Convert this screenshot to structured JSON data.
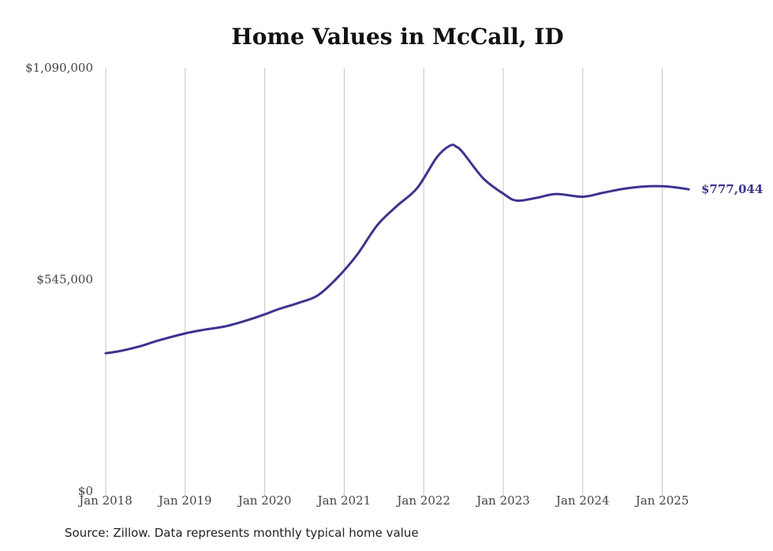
{
  "chart_data": {
    "type": "line",
    "title": "Home Values in McCall, ID",
    "xlabel": "",
    "ylabel": "",
    "ylim": [
      0,
      1090000
    ],
    "y_ticks": [
      {
        "value": 0,
        "label": "$0"
      },
      {
        "value": 545000,
        "label": "$545,000"
      },
      {
        "value": 1090000,
        "label": "$1,090,000"
      }
    ],
    "x_ticks": [
      "Jan 2018",
      "Jan 2019",
      "Jan 2020",
      "Jan 2021",
      "Jan 2022",
      "Jan 2023",
      "Jan 2024",
      "Jan 2025"
    ],
    "grid": "vertical",
    "line_color": "#3d3490",
    "end_label": "$777,044",
    "series": [
      {
        "x": [
          "2018-01",
          "2018-03",
          "2018-06",
          "2018-09",
          "2019-01",
          "2019-04",
          "2019-07",
          "2019-10",
          "2020-01",
          "2020-03",
          "2020-06",
          "2020-09",
          "2020-12",
          "2021-03",
          "2021-06",
          "2021-09",
          "2021-12",
          "2022-03",
          "2022-05",
          "2022-06",
          "2022-07",
          "2022-10",
          "2023-01",
          "2023-03",
          "2023-06",
          "2023-09",
          "2024-01",
          "2024-04",
          "2024-07",
          "2024-10",
          "2025-01",
          "2025-03",
          "2025-05"
        ],
        "values": [
          355000,
          360000,
          372000,
          388000,
          406000,
          416000,
          424000,
          438000,
          455000,
          468000,
          484000,
          504000,
          550000,
          610000,
          685000,
          735000,
          780000,
          860000,
          890000,
          886000,
          870000,
          805000,
          766000,
          748000,
          755000,
          765000,
          758000,
          768000,
          778000,
          784000,
          785000,
          782000,
          777044
        ]
      }
    ]
  },
  "footer": {
    "source": "Source: Zillow. Data represents monthly typical home value"
  }
}
